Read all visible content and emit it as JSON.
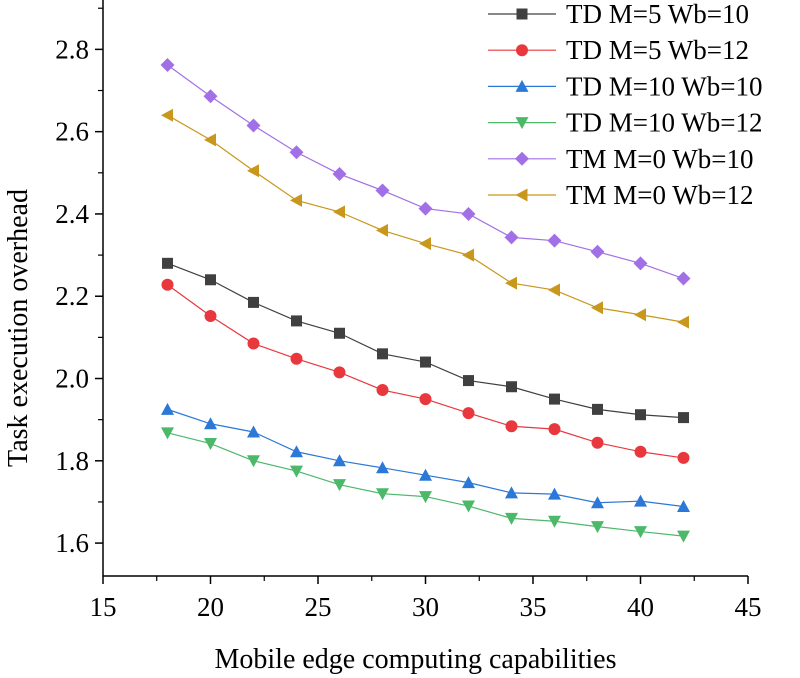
{
  "chart_data": {
    "type": "line",
    "title": "",
    "xlabel": "Mobile edge computing capabilities",
    "ylabel": "Task execution overhead",
    "xlim": [
      15,
      45
    ],
    "ylim": [
      1.52,
      2.92
    ],
    "xticks": [
      15,
      20,
      25,
      30,
      35,
      40,
      45
    ],
    "yticks": [
      1.6,
      1.8,
      2.0,
      2.2,
      2.4,
      2.6,
      2.8
    ],
    "grid": false,
    "legend_position": "top-right",
    "x": [
      18,
      20,
      22,
      24,
      26,
      28,
      30,
      32,
      34,
      36,
      38,
      40,
      42
    ],
    "series": [
      {
        "name": "TD M=5 Wb=10",
        "color": "#404040",
        "marker": "square",
        "values": [
          2.28,
          2.24,
          2.185,
          2.14,
          2.11,
          2.06,
          2.04,
          1.995,
          1.98,
          1.95,
          1.925,
          1.912,
          1.905
        ]
      },
      {
        "name": "TD M=5 Wb=12",
        "color": "#e8383d",
        "marker": "circle",
        "values": [
          2.228,
          2.152,
          2.085,
          2.048,
          2.015,
          1.972,
          1.95,
          1.916,
          1.884,
          1.877,
          1.844,
          1.822,
          1.807
        ]
      },
      {
        "name": "TD M=10 Wb=10",
        "color": "#2b78d8",
        "marker": "triangle-up",
        "values": [
          1.925,
          1.89,
          1.87,
          1.822,
          1.8,
          1.783,
          1.765,
          1.747,
          1.722,
          1.719,
          1.698,
          1.702,
          1.689
        ]
      },
      {
        "name": "TD M=10 Wb=12",
        "color": "#4cb86a",
        "marker": "triangle-down",
        "values": [
          1.868,
          1.842,
          1.8,
          1.775,
          1.742,
          1.72,
          1.713,
          1.69,
          1.66,
          1.653,
          1.64,
          1.628,
          1.617
        ]
      },
      {
        "name": "TM M=0 Wb=10",
        "color": "#a270e6",
        "marker": "diamond",
        "values": [
          2.762,
          2.686,
          2.615,
          2.55,
          2.497,
          2.457,
          2.413,
          2.4,
          2.343,
          2.335,
          2.308,
          2.28,
          2.243
        ]
      },
      {
        "name": "TM M=0 Wb=12",
        "color": "#c8971c",
        "marker": "triangle-left",
        "values": [
          2.64,
          2.58,
          2.505,
          2.433,
          2.405,
          2.36,
          2.328,
          2.3,
          2.232,
          2.215,
          2.172,
          2.155,
          2.137
        ]
      }
    ]
  }
}
